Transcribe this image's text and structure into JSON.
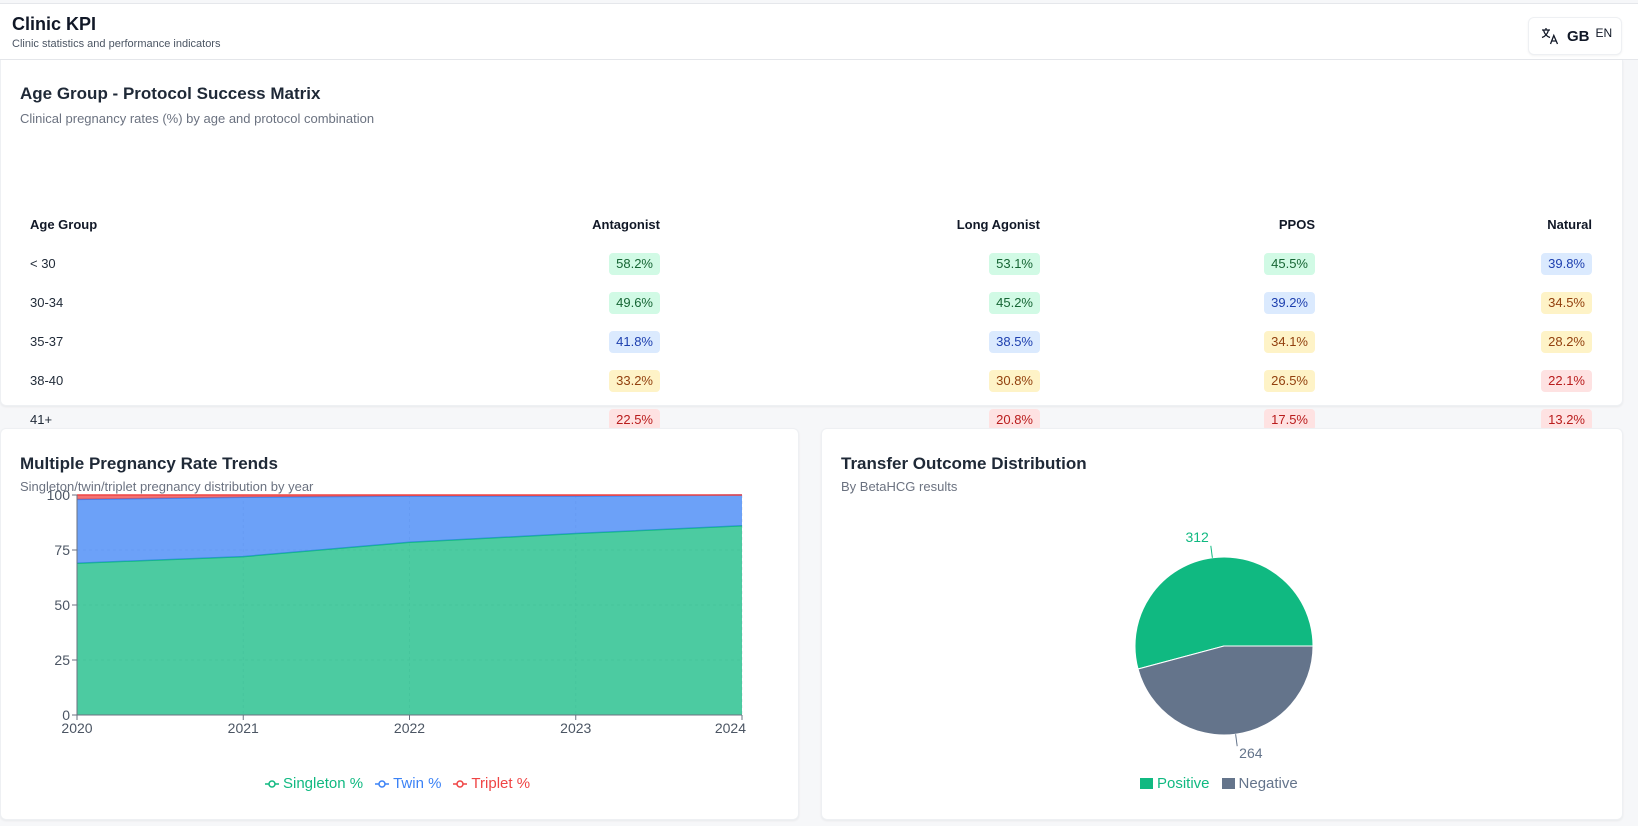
{
  "header": {
    "title": "Clinic KPI",
    "subtitle": "Clinic statistics and performance indicators",
    "language": {
      "icon": "translate-icon",
      "flag": "GB",
      "code": "EN"
    }
  },
  "matrix": {
    "title": "Age Group - Protocol Success Matrix",
    "subtitle": "Clinical pregnancy rates (%) by age and protocol combination",
    "headers": [
      "Age Group",
      "Antagonist",
      "Long Agonist",
      "PPOS",
      "Natural"
    ],
    "rows": [
      {
        "age": "< 30",
        "values": [
          "58.2%",
          "53.1%",
          "45.5%",
          "39.8%"
        ],
        "levels": [
          "green",
          "green",
          "green",
          "blue"
        ]
      },
      {
        "age": "30-34",
        "values": [
          "49.6%",
          "45.2%",
          "39.2%",
          "34.5%"
        ],
        "levels": [
          "green",
          "green",
          "blue",
          "yellow"
        ]
      },
      {
        "age": "35-37",
        "values": [
          "41.8%",
          "38.5%",
          "34.1%",
          "28.2%"
        ],
        "levels": [
          "blue",
          "blue",
          "yellow",
          "yellow"
        ]
      },
      {
        "age": "38-40",
        "values": [
          "33.2%",
          "30.8%",
          "26.5%",
          "22.1%"
        ],
        "levels": [
          "yellow",
          "yellow",
          "yellow",
          "red"
        ]
      },
      {
        "age": "41+",
        "values": [
          "22.5%",
          "20.8%",
          "17.5%",
          "13.2%"
        ],
        "levels": [
          "red",
          "red",
          "red",
          "red"
        ]
      }
    ]
  },
  "trend": {
    "title": "Multiple Pregnancy Rate Trends",
    "subtitle": "Singleton/twin/triplet pregnancy distribution by year"
  },
  "outcome": {
    "title": "Transfer Outcome Distribution",
    "subtitle": "By BetaHCG results"
  },
  "chart_data": [
    {
      "type": "area",
      "stacked": true,
      "x": [
        "2020",
        "2021",
        "2022",
        "2023",
        "2024"
      ],
      "series": [
        {
          "name": "Singleton %",
          "color": "#10b981",
          "values": [
            69,
            72,
            78.5,
            82.5,
            86
          ]
        },
        {
          "name": "Twin %",
          "color": "#3b82f6",
          "values": [
            29,
            27,
            21,
            17,
            14
          ]
        },
        {
          "name": "Triplet %",
          "color": "#ef4444",
          "values": [
            3,
            1,
            0.5,
            0.5,
            0.5
          ]
        }
      ],
      "ylim": [
        0,
        100
      ],
      "yticks": [
        "0",
        "25",
        "50",
        "75",
        "100"
      ],
      "grid": true,
      "legend": "bottom"
    },
    {
      "type": "pie",
      "slices": [
        {
          "name": "Positive",
          "value": 312,
          "color": "#10b981"
        },
        {
          "name": "Negative",
          "value": 264,
          "color": "#64748b"
        }
      ],
      "legend": "bottom"
    }
  ]
}
